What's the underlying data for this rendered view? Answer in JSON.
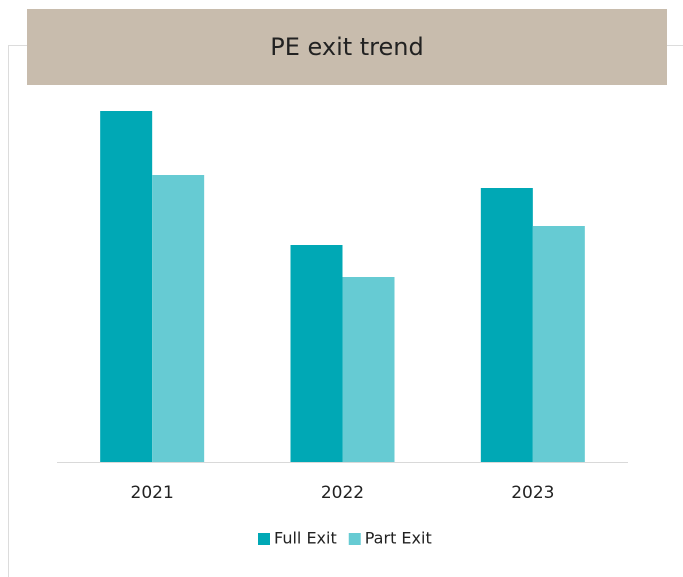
{
  "chart_data": {
    "type": "bar",
    "title": "PE exit trend",
    "categories": [
      "2021",
      "2022",
      "2023"
    ],
    "series": [
      {
        "name": "Full Exit",
        "color": "#00a8b5",
        "values": [
          351,
          217,
          274
        ]
      },
      {
        "name": "Part Exit",
        "color": "#66cbd3",
        "values": [
          287,
          185,
          236
        ]
      }
    ],
    "ylim": [
      0,
      360
    ],
    "legend": "bottom"
  }
}
